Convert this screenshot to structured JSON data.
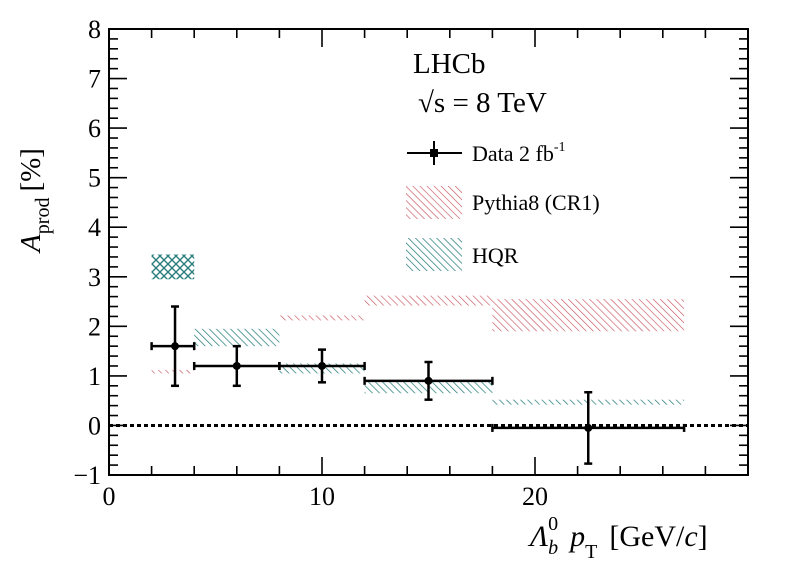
{
  "chart_data": {
    "type": "scatter",
    "experiment": "LHCb",
    "energy_label": "√s = 8 TeV",
    "ylabel": {
      "main": "A",
      "sub": "prod",
      "unit": "[%]"
    },
    "xlabel": {
      "symbol": "Λ",
      "sub": "b",
      "sup": "0",
      "var": "p",
      "var_sub": "T",
      "unit_open": "[GeV/",
      "unit_c": "c",
      "unit_close": "]"
    },
    "xlim": [
      0,
      30
    ],
    "ylim": [
      -1,
      8
    ],
    "x_ticks": [
      "0",
      "10",
      "20"
    ],
    "x_tick_values": [
      0,
      10,
      20
    ],
    "y_ticks": [
      "−1",
      "0",
      "1",
      "2",
      "3",
      "4",
      "5",
      "6",
      "7",
      "8"
    ],
    "y_tick_values": [
      -1,
      0,
      1,
      2,
      3,
      4,
      5,
      6,
      7,
      8
    ],
    "reference_line": 0,
    "legend": {
      "data_label": "Data 2 fb",
      "data_label_sup": "-1",
      "pythia_label": "Pythia8 (CR1)",
      "hqr_label": "HQR"
    },
    "colors": {
      "pythia": "#c8545e",
      "hqr": "#2a7f7c",
      "data": "#000000"
    },
    "series": [
      {
        "name": "Data 2 fb-1",
        "type": "errorbar",
        "points": [
          {
            "x": 3.1,
            "xlo": 2,
            "xhi": 4,
            "y": 1.6,
            "yerr": 0.8
          },
          {
            "x": 6.0,
            "xlo": 4,
            "xhi": 8,
            "y": 1.2,
            "yerr": 0.4
          },
          {
            "x": 10.0,
            "xlo": 8,
            "xhi": 12,
            "y": 1.2,
            "yerr": 0.33
          },
          {
            "x": 15.0,
            "xlo": 12,
            "xhi": 18,
            "y": 0.9,
            "yerr": 0.38
          },
          {
            "x": 22.5,
            "xlo": 18,
            "xhi": 27,
            "y": -0.05,
            "yerr": 0.72
          }
        ]
      },
      {
        "name": "Pythia8 (CR1)",
        "type": "band",
        "bins": [
          {
            "xlo": 2,
            "xhi": 4,
            "ylo": 1.05,
            "yhi": 1.12
          },
          {
            "xlo": 8,
            "xhi": 12,
            "ylo": 2.12,
            "yhi": 2.22
          },
          {
            "xlo": 12,
            "xhi": 18,
            "ylo": 2.42,
            "yhi": 2.62
          },
          {
            "xlo": 18,
            "xhi": 27,
            "ylo": 1.9,
            "yhi": 2.55
          }
        ]
      },
      {
        "name": "HQR",
        "type": "band",
        "bins": [
          {
            "xlo": 2,
            "xhi": 4,
            "ylo": 2.95,
            "yhi": 3.45,
            "crosshatch": true
          },
          {
            "xlo": 4,
            "xhi": 8,
            "ylo": 1.6,
            "yhi": 1.95
          },
          {
            "xlo": 8,
            "xhi": 12,
            "ylo": 1.05,
            "yhi": 1.25
          },
          {
            "xlo": 12,
            "xhi": 18,
            "ylo": 0.65,
            "yhi": 0.88
          },
          {
            "xlo": 18,
            "xhi": 27,
            "ylo": 0.42,
            "yhi": 0.52
          }
        ]
      }
    ]
  }
}
